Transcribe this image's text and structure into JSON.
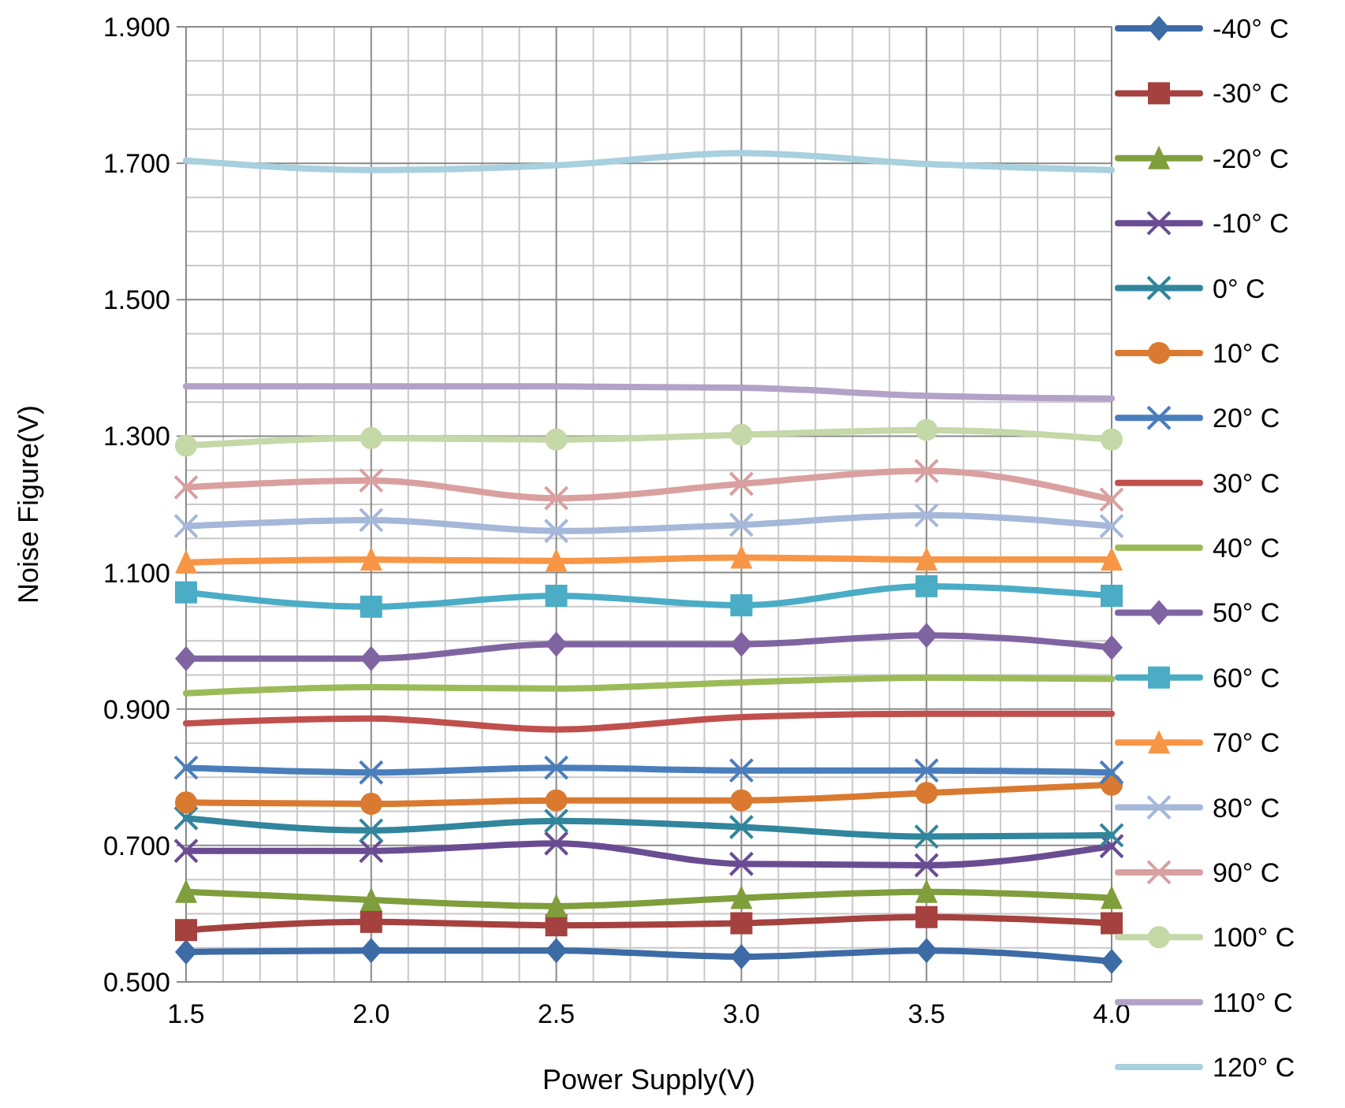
{
  "chart_data": {
    "type": "line",
    "xlabel": "Power Supply(V)",
    "ylabel": "Noise Figure(V)",
    "x": [
      1.5,
      2.0,
      2.5,
      3.0,
      3.5,
      4.0
    ],
    "xlim": [
      1.5,
      4.0
    ],
    "xticks": [
      {
        "value": 1.5,
        "label": "1.5"
      },
      {
        "value": 2,
        "label": "2.0"
      },
      {
        "value": 2.5,
        "label": "2.5"
      },
      {
        "value": 3,
        "label": "3.0"
      },
      {
        "value": 3.5,
        "label": "3.5"
      },
      {
        "value": 4,
        "label": "4.0"
      }
    ],
    "ylim": [
      0.5,
      1.9
    ],
    "yticks": [
      {
        "value": 0.5,
        "label": "0.500"
      },
      {
        "value": 0.7,
        "label": "0.700"
      },
      {
        "value": 0.9,
        "label": "0.900"
      },
      {
        "value": 1.1,
        "label": "1.100"
      },
      {
        "value": 1.3,
        "label": "1.300"
      },
      {
        "value": 1.5,
        "label": "1.500"
      },
      {
        "value": 1.7,
        "label": "1.700"
      },
      {
        "value": 1.9,
        "label": "1.900"
      }
    ],
    "grid": true,
    "legend": "right",
    "series": [
      {
        "name": "-40° C",
        "color": "#3d6ba6",
        "marker": "diamond",
        "values": [
          0.544,
          0.546,
          0.546,
          0.537,
          0.546,
          0.53
        ]
      },
      {
        "name": "-30° C",
        "color": "#a5413e",
        "marker": "square",
        "values": [
          0.576,
          0.588,
          0.583,
          0.586,
          0.595,
          0.586
        ]
      },
      {
        "name": "-20° C",
        "color": "#7f9e3c",
        "marker": "triangle",
        "values": [
          0.632,
          0.62,
          0.611,
          0.623,
          0.632,
          0.623
        ]
      },
      {
        "name": "-10° C",
        "color": "#6a4c93",
        "marker": "cross",
        "values": [
          0.692,
          0.692,
          0.703,
          0.673,
          0.671,
          0.699
        ]
      },
      {
        "name": "0° C",
        "color": "#31859c",
        "marker": "cross",
        "values": [
          0.74,
          0.722,
          0.736,
          0.727,
          0.713,
          0.715
        ]
      },
      {
        "name": "10° C",
        "color": "#d97a30",
        "marker": "circle",
        "values": [
          0.763,
          0.761,
          0.766,
          0.766,
          0.777,
          0.789
        ]
      },
      {
        "name": "20° C",
        "color": "#4a7ebb",
        "marker": "cross",
        "values": [
          0.814,
          0.807,
          0.814,
          0.81,
          0.81,
          0.807
        ]
      },
      {
        "name": "30° C",
        "color": "#c0504d",
        "marker": "none",
        "values": [
          0.879,
          0.886,
          0.87,
          0.888,
          0.893,
          0.893
        ]
      },
      {
        "name": "40° C",
        "color": "#9bbb59",
        "marker": "none",
        "values": [
          0.923,
          0.932,
          0.93,
          0.939,
          0.946,
          0.944
        ]
      },
      {
        "name": "50° C",
        "color": "#8064a2",
        "marker": "diamond",
        "values": [
          0.974,
          0.974,
          0.995,
          0.995,
          1.008,
          0.99
        ]
      },
      {
        "name": "60° C",
        "color": "#4bacc6",
        "marker": "square",
        "values": [
          1.071,
          1.05,
          1.066,
          1.052,
          1.08,
          1.066
        ]
      },
      {
        "name": "70° C",
        "color": "#f79646",
        "marker": "triangle",
        "values": [
          1.115,
          1.119,
          1.117,
          1.122,
          1.119,
          1.119
        ]
      },
      {
        "name": "80° C",
        "color": "#a5b8d9",
        "marker": "cross",
        "values": [
          1.168,
          1.177,
          1.161,
          1.17,
          1.184,
          1.168
        ]
      },
      {
        "name": "90° C",
        "color": "#d9a09f",
        "marker": "cross",
        "values": [
          1.225,
          1.235,
          1.209,
          1.23,
          1.249,
          1.207
        ]
      },
      {
        "name": "100° C",
        "color": "#c4d8a8",
        "marker": "circle",
        "values": [
          1.286,
          1.297,
          1.295,
          1.302,
          1.309,
          1.295
        ]
      },
      {
        "name": "110° C",
        "color": "#b3a2c7",
        "marker": "none",
        "values": [
          1.373,
          1.373,
          1.373,
          1.371,
          1.359,
          1.355
        ]
      },
      {
        "name": "120° C",
        "color": "#a8d0de",
        "marker": "none",
        "values": [
          1.704,
          1.69,
          1.697,
          1.715,
          1.699,
          1.69
        ]
      }
    ]
  }
}
